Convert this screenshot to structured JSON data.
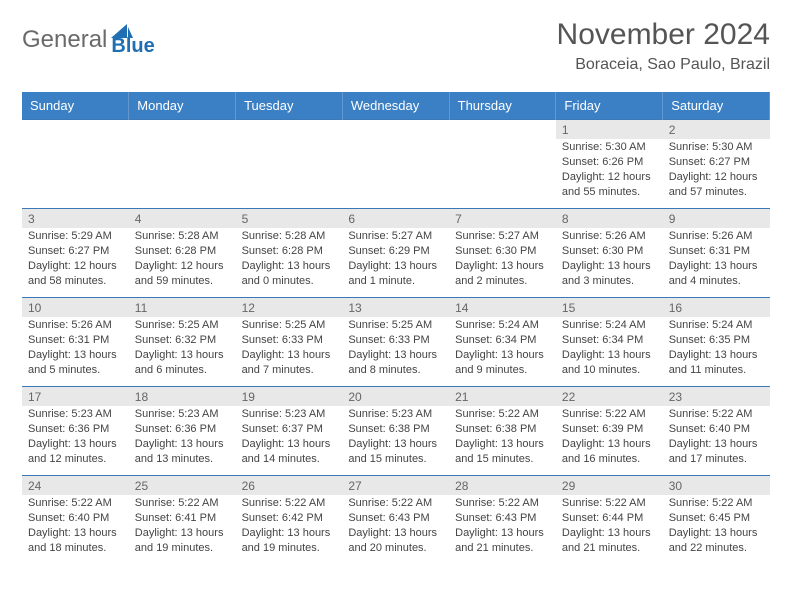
{
  "logo": {
    "text_general": "General",
    "text_blue": "Blue",
    "gray_color": "#6a6a6a",
    "blue_color": "#1f6fb2"
  },
  "title": "November 2024",
  "location": "Boraceia, Sao Paulo, Brazil",
  "colors": {
    "header_bg": "#3b7fc4",
    "daynum_bg": "#e8e8e8",
    "cell_border": "#3b78b8"
  },
  "weekday_labels": [
    "Sunday",
    "Monday",
    "Tuesday",
    "Wednesday",
    "Thursday",
    "Friday",
    "Saturday"
  ],
  "num_rows": 5,
  "first_weekday_index": 5,
  "days": [
    {
      "n": 1,
      "sunrise": "5:30 AM",
      "sunset": "6:26 PM",
      "daylight": "12 hours and 55 minutes."
    },
    {
      "n": 2,
      "sunrise": "5:30 AM",
      "sunset": "6:27 PM",
      "daylight": "12 hours and 57 minutes."
    },
    {
      "n": 3,
      "sunrise": "5:29 AM",
      "sunset": "6:27 PM",
      "daylight": "12 hours and 58 minutes."
    },
    {
      "n": 4,
      "sunrise": "5:28 AM",
      "sunset": "6:28 PM",
      "daylight": "12 hours and 59 minutes."
    },
    {
      "n": 5,
      "sunrise": "5:28 AM",
      "sunset": "6:28 PM",
      "daylight": "13 hours and 0 minutes."
    },
    {
      "n": 6,
      "sunrise": "5:27 AM",
      "sunset": "6:29 PM",
      "daylight": "13 hours and 1 minute."
    },
    {
      "n": 7,
      "sunrise": "5:27 AM",
      "sunset": "6:30 PM",
      "daylight": "13 hours and 2 minutes."
    },
    {
      "n": 8,
      "sunrise": "5:26 AM",
      "sunset": "6:30 PM",
      "daylight": "13 hours and 3 minutes."
    },
    {
      "n": 9,
      "sunrise": "5:26 AM",
      "sunset": "6:31 PM",
      "daylight": "13 hours and 4 minutes."
    },
    {
      "n": 10,
      "sunrise": "5:26 AM",
      "sunset": "6:31 PM",
      "daylight": "13 hours and 5 minutes."
    },
    {
      "n": 11,
      "sunrise": "5:25 AM",
      "sunset": "6:32 PM",
      "daylight": "13 hours and 6 minutes."
    },
    {
      "n": 12,
      "sunrise": "5:25 AM",
      "sunset": "6:33 PM",
      "daylight": "13 hours and 7 minutes."
    },
    {
      "n": 13,
      "sunrise": "5:25 AM",
      "sunset": "6:33 PM",
      "daylight": "13 hours and 8 minutes."
    },
    {
      "n": 14,
      "sunrise": "5:24 AM",
      "sunset": "6:34 PM",
      "daylight": "13 hours and 9 minutes."
    },
    {
      "n": 15,
      "sunrise": "5:24 AM",
      "sunset": "6:34 PM",
      "daylight": "13 hours and 10 minutes."
    },
    {
      "n": 16,
      "sunrise": "5:24 AM",
      "sunset": "6:35 PM",
      "daylight": "13 hours and 11 minutes."
    },
    {
      "n": 17,
      "sunrise": "5:23 AM",
      "sunset": "6:36 PM",
      "daylight": "13 hours and 12 minutes."
    },
    {
      "n": 18,
      "sunrise": "5:23 AM",
      "sunset": "6:36 PM",
      "daylight": "13 hours and 13 minutes."
    },
    {
      "n": 19,
      "sunrise": "5:23 AM",
      "sunset": "6:37 PM",
      "daylight": "13 hours and 14 minutes."
    },
    {
      "n": 20,
      "sunrise": "5:23 AM",
      "sunset": "6:38 PM",
      "daylight": "13 hours and 15 minutes."
    },
    {
      "n": 21,
      "sunrise": "5:22 AM",
      "sunset": "6:38 PM",
      "daylight": "13 hours and 15 minutes."
    },
    {
      "n": 22,
      "sunrise": "5:22 AM",
      "sunset": "6:39 PM",
      "daylight": "13 hours and 16 minutes."
    },
    {
      "n": 23,
      "sunrise": "5:22 AM",
      "sunset": "6:40 PM",
      "daylight": "13 hours and 17 minutes."
    },
    {
      "n": 24,
      "sunrise": "5:22 AM",
      "sunset": "6:40 PM",
      "daylight": "13 hours and 18 minutes."
    },
    {
      "n": 25,
      "sunrise": "5:22 AM",
      "sunset": "6:41 PM",
      "daylight": "13 hours and 19 minutes."
    },
    {
      "n": 26,
      "sunrise": "5:22 AM",
      "sunset": "6:42 PM",
      "daylight": "13 hours and 19 minutes."
    },
    {
      "n": 27,
      "sunrise": "5:22 AM",
      "sunset": "6:43 PM",
      "daylight": "13 hours and 20 minutes."
    },
    {
      "n": 28,
      "sunrise": "5:22 AM",
      "sunset": "6:43 PM",
      "daylight": "13 hours and 21 minutes."
    },
    {
      "n": 29,
      "sunrise": "5:22 AM",
      "sunset": "6:44 PM",
      "daylight": "13 hours and 21 minutes."
    },
    {
      "n": 30,
      "sunrise": "5:22 AM",
      "sunset": "6:45 PM",
      "daylight": "13 hours and 22 minutes."
    }
  ],
  "labels": {
    "sunrise": "Sunrise: ",
    "sunset": "Sunset: ",
    "daylight": "Daylight: "
  }
}
